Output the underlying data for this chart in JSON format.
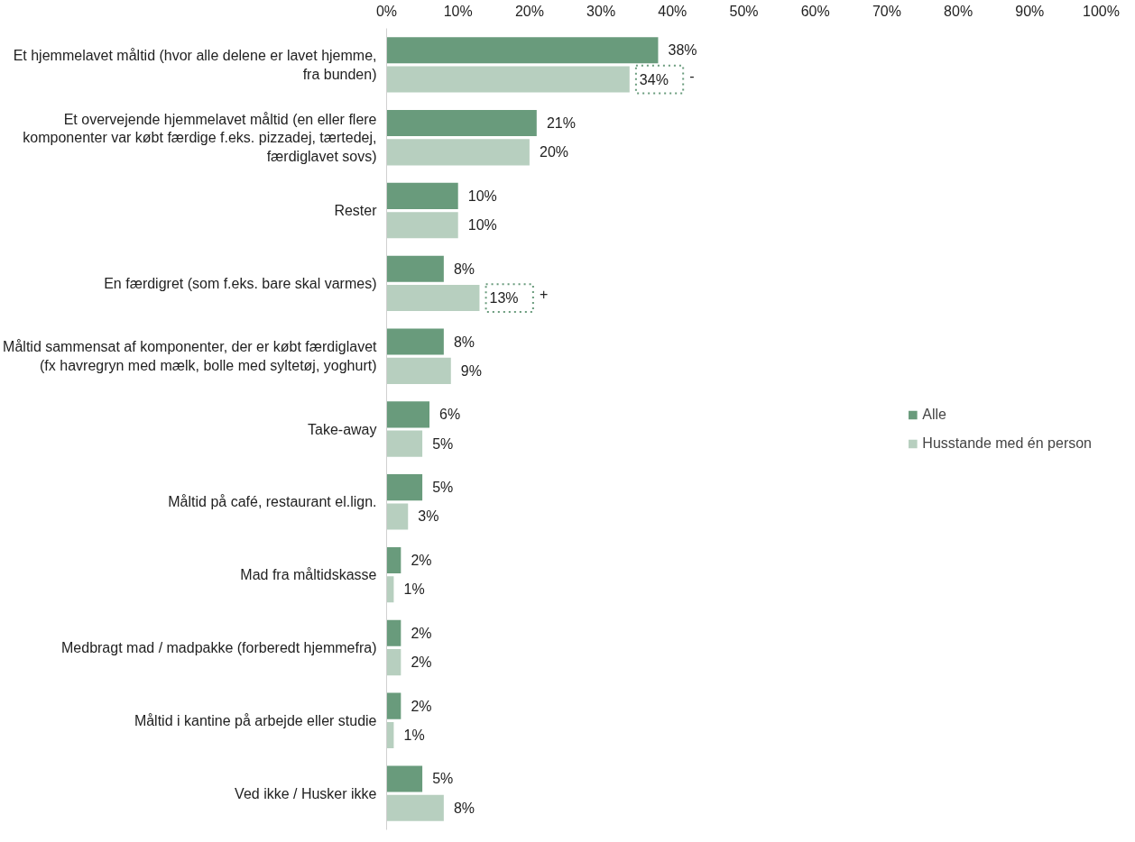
{
  "chart_data": {
    "type": "bar",
    "orientation": "horizontal",
    "categories": [
      "Et hjemmelavet måltid (hvor alle delene er lavet hjemme, fra bunden)",
      "Et overvejende hjemmelavet måltid (en eller flere komponenter var købt færdige f.eks. pizzadej, tærtedej, færdiglavet sovs)",
      "Rester",
      "En færdigret (som f.eks. bare skal varmes)",
      "Måltid sammensat af komponenter, der er købt færdiglavet (fx havregryn med mælk, bolle med syltetøj, yoghurt)",
      "Take-away",
      "Måltid på café, restaurant el.lign.",
      "Mad fra måltidskasse",
      "Medbragt mad / madpakke (forberedt hjemmefra)",
      "Måltid i kantine på arbejde eller studie",
      "Ved ikke / Husker ikke"
    ],
    "series": [
      {
        "name": "Alle",
        "color": "#699b7c",
        "values": [
          38,
          21,
          10,
          8,
          8,
          6,
          5,
          2,
          2,
          2,
          5
        ],
        "value_labels": [
          "38%",
          "21%",
          "10%",
          "8%",
          "8%",
          "6%",
          "5%",
          "2%",
          "2%",
          "2%",
          "5%"
        ]
      },
      {
        "name": "Husstande med én person",
        "color": "#b7cfbf",
        "values": [
          34,
          20,
          10,
          13,
          9,
          5,
          3,
          1,
          2,
          1,
          8
        ],
        "value_labels": [
          "34% -",
          "20%",
          "10%",
          "13% +",
          "9%",
          "5%",
          "3%",
          "1%",
          "2%",
          "1%",
          "8%"
        ]
      }
    ],
    "xlim": [
      0,
      100
    ],
    "xticks": [
      {
        "value": 0,
        "label": "0%"
      },
      {
        "value": 10,
        "label": "10%"
      },
      {
        "value": 20,
        "label": "20%"
      },
      {
        "value": 30,
        "label": "30%"
      },
      {
        "value": 40,
        "label": "40%"
      },
      {
        "value": 50,
        "label": "50%"
      },
      {
        "value": 60,
        "label": "60%"
      },
      {
        "value": 70,
        "label": "70%"
      },
      {
        "value": 80,
        "label": "80%"
      },
      {
        "value": 90,
        "label": "90%"
      },
      {
        "value": 100,
        "label": "100%"
      }
    ],
    "grid": false,
    "legend": "right"
  }
}
